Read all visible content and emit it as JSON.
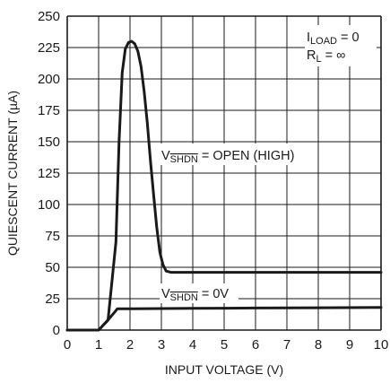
{
  "chart_data": {
    "type": "line",
    "xlabel": "INPUT VOLTAGE (V)",
    "ylabel": "QUIESCENT CURRENT (µA)",
    "xlim": [
      0,
      10
    ],
    "ylim": [
      0,
      250
    ],
    "x_ticks": [
      0,
      1,
      2,
      3,
      4,
      5,
      6,
      7,
      8,
      9,
      10
    ],
    "y_ticks": [
      0,
      25,
      50,
      75,
      100,
      125,
      150,
      175,
      200,
      225,
      250
    ],
    "grid": true,
    "legend": "none",
    "series": [
      {
        "x": [
          0,
          1.0,
          1.3,
          1.55,
          1.65,
          1.75,
          1.85,
          1.95,
          2.05,
          2.15,
          2.25,
          2.35,
          2.45,
          2.55,
          2.65,
          2.75,
          2.85,
          2.95,
          3.05,
          3.15,
          3.3,
          4,
          5,
          6,
          7,
          8,
          9,
          10
        ],
        "y": [
          0,
          0,
          8,
          70,
          150,
          205,
          224,
          229,
          230,
          228,
          222,
          210,
          190,
          165,
          135,
          108,
          82,
          62,
          52,
          47,
          46,
          46,
          46,
          46,
          46,
          46,
          46,
          46
        ]
      },
      {
        "x": [
          0,
          1.0,
          1.3,
          1.6,
          2,
          4,
          6,
          8,
          10
        ],
        "y": [
          0,
          0,
          8,
          17,
          17,
          17.3,
          17.6,
          17.8,
          18
        ]
      }
    ],
    "annotations": [
      {
        "main": "V",
        "sub": "SHDN",
        "rest": " = OPEN (HIGH)"
      },
      {
        "main": "V",
        "sub": "SHDN",
        "rest": " = 0V"
      },
      {
        "main": "I",
        "sub": "LOAD",
        "rest": " = 0"
      },
      {
        "main": "R",
        "sub": "L",
        "rest": " = ∞"
      }
    ]
  },
  "colors": {
    "line": "#1a1a1a",
    "grid": "#1a1a1a",
    "background": "#ffffff"
  }
}
